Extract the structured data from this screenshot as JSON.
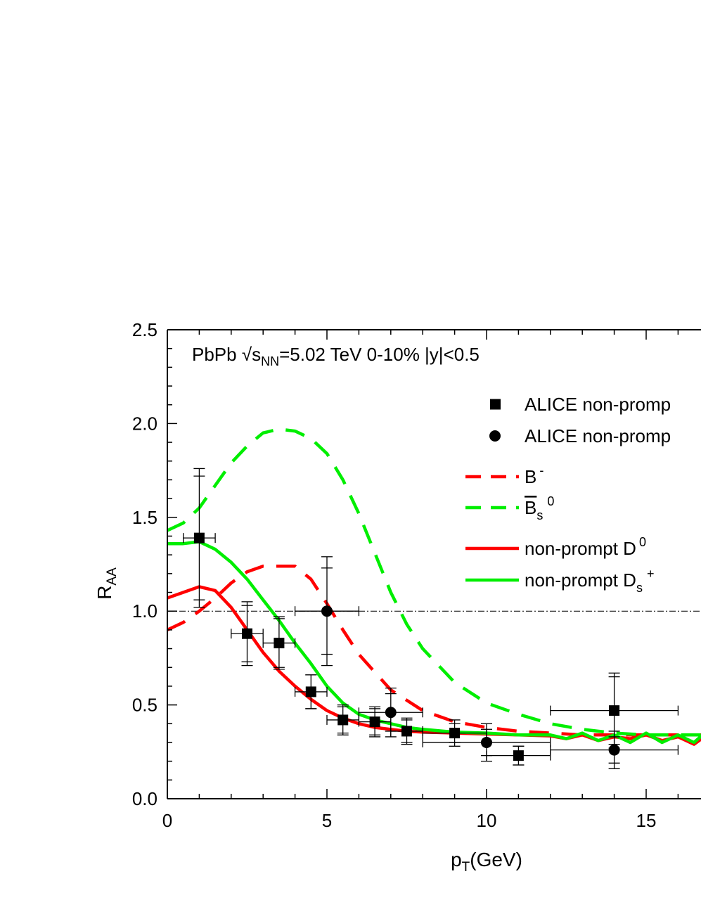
{
  "chart_data": {
    "type": "line",
    "annotation": {
      "prefix": "PbPb √s",
      "sub": "NN",
      "suffix": "=5.02 TeV 0-10% |y|<0.5"
    },
    "xlabel": {
      "main": "p",
      "sub": "T",
      "rest": "(GeV)"
    },
    "ylabel": {
      "main": "R",
      "sub": "AA"
    },
    "xlim": [
      0,
      16.9
    ],
    "ylim": [
      0,
      2.5
    ],
    "x_ticks": [
      0,
      5,
      10,
      15
    ],
    "y_ticks": [
      "0.0",
      "0.5",
      "1.0",
      "1.5",
      "2.0",
      "2.5"
    ],
    "reference_line": 1.0,
    "legend_position": "top-right",
    "series": [
      {
        "name": "ALICE non-promp",
        "marker": "square",
        "color": "#000000",
        "points": [
          {
            "x": 1.0,
            "y": 1.39,
            "xerr": 0.5,
            "yerr_stat": 0.33,
            "yerr_sys": 0.37
          },
          {
            "x": 2.5,
            "y": 0.88,
            "xerr": 0.5,
            "yerr_stat": 0.15,
            "yerr_sys": 0.17
          },
          {
            "x": 3.5,
            "y": 0.83,
            "xerr": 0.5,
            "yerr_stat": 0.13,
            "yerr_sys": 0.14
          },
          {
            "x": 4.5,
            "y": 0.57,
            "xerr": 0.5,
            "yerr_stat": 0.09,
            "yerr_sys": 0.09
          },
          {
            "x": 5.5,
            "y": 0.42,
            "xerr": 0.5,
            "yerr_stat": 0.07,
            "yerr_sys": 0.08
          },
          {
            "x": 6.5,
            "y": 0.41,
            "xerr": 0.5,
            "yerr_stat": 0.07,
            "yerr_sys": 0.08
          },
          {
            "x": 7.5,
            "y": 0.36,
            "xerr": 0.5,
            "yerr_stat": 0.06,
            "yerr_sys": 0.07
          },
          {
            "x": 9.0,
            "y": 0.35,
            "xerr": 1.0,
            "yerr_stat": 0.05,
            "yerr_sys": 0.07
          },
          {
            "x": 11.0,
            "y": 0.23,
            "xerr": 1.0,
            "yerr_stat": 0.05,
            "yerr_sys": 0.05
          },
          {
            "x": 14.0,
            "y": 0.47,
            "xerr": 2.0,
            "yerr_stat": 0.18,
            "yerr_sys": 0.2
          }
        ]
      },
      {
        "name": "ALICE non-promp",
        "marker": "circle",
        "color": "#000000",
        "points": [
          {
            "x": 5.0,
            "y": 1.0,
            "xerr": 1.0,
            "yerr_stat": 0.23,
            "yerr_sys": 0.29
          },
          {
            "x": 7.0,
            "y": 0.46,
            "xerr": 1.0,
            "yerr_stat": 0.1,
            "yerr_sys": 0.13
          },
          {
            "x": 10.0,
            "y": 0.3,
            "xerr": 2.0,
            "yerr_stat": 0.07,
            "yerr_sys": 0.1
          },
          {
            "x": 14.0,
            "y": 0.26,
            "xerr": 2.0,
            "yerr_stat": 0.07,
            "yerr_sys": 0.1
          }
        ]
      },
      {
        "name": "B",
        "name_sup": "-",
        "style": "dashed",
        "color": "#ff0000",
        "x": [
          0,
          0.5,
          1.0,
          1.5,
          2.0,
          2.5,
          3.0,
          3.5,
          4.0,
          4.5,
          5.0,
          5.5,
          6.0,
          7.0,
          8.0,
          9.0,
          10.0,
          11.0,
          12.0,
          13.0,
          14.0,
          15.0,
          16.0,
          16.9
        ],
        "y": [
          0.9,
          0.94,
          1.0,
          1.07,
          1.15,
          1.21,
          1.24,
          1.24,
          1.24,
          1.17,
          1.04,
          0.9,
          0.77,
          0.58,
          0.47,
          0.41,
          0.38,
          0.36,
          0.35,
          0.34,
          0.34,
          0.34,
          0.34,
          0.34
        ]
      },
      {
        "name": "B",
        "name_sub": "s",
        "name_sup": "0",
        "name_overline": true,
        "style": "dashed",
        "color": "#00ee00",
        "x": [
          0,
          0.5,
          1.0,
          1.5,
          2.0,
          2.5,
          3.0,
          3.5,
          4.0,
          4.5,
          5.0,
          5.5,
          6.0,
          6.5,
          7.0,
          7.5,
          8.0,
          9.0,
          10.0,
          11.0,
          12.0,
          13.0,
          14.0,
          15.0,
          16.0,
          16.9
        ],
        "y": [
          1.43,
          1.47,
          1.55,
          1.67,
          1.79,
          1.88,
          1.95,
          1.97,
          1.96,
          1.92,
          1.84,
          1.7,
          1.52,
          1.31,
          1.1,
          0.93,
          0.8,
          0.62,
          0.51,
          0.45,
          0.4,
          0.37,
          0.35,
          0.34,
          0.34,
          0.34
        ]
      },
      {
        "name": "non-prompt D",
        "name_sup": "0",
        "style": "solid",
        "color": "#ff0000",
        "x": [
          0,
          0.5,
          1.0,
          1.5,
          2.0,
          2.5,
          3.0,
          3.5,
          4.0,
          4.5,
          5.0,
          5.5,
          6.0,
          6.5,
          7.0,
          7.5,
          8.0,
          9.0,
          10.0,
          11.0,
          12.0,
          12.5,
          13.0,
          13.5,
          14.0,
          14.5,
          15.0,
          15.5,
          16.0,
          16.5,
          16.9
        ],
        "y": [
          1.07,
          1.1,
          1.13,
          1.11,
          1.02,
          0.9,
          0.78,
          0.68,
          0.6,
          0.53,
          0.47,
          0.43,
          0.4,
          0.38,
          0.37,
          0.36,
          0.355,
          0.35,
          0.345,
          0.34,
          0.335,
          0.32,
          0.34,
          0.31,
          0.33,
          0.32,
          0.34,
          0.31,
          0.33,
          0.29,
          0.34
        ]
      },
      {
        "name": "non-prompt D",
        "name_sub": "s",
        "name_sup": "+",
        "style": "solid",
        "color": "#00ee00",
        "x": [
          0,
          0.5,
          1.0,
          1.5,
          2.0,
          2.5,
          3.0,
          3.5,
          4.0,
          4.5,
          5.0,
          5.5,
          6.0,
          6.5,
          7.0,
          7.5,
          8.0,
          9.0,
          10.0,
          11.0,
          12.0,
          12.5,
          13.0,
          13.5,
          14.0,
          14.5,
          15.0,
          15.5,
          16.0,
          16.5,
          16.9
        ],
        "y": [
          1.36,
          1.36,
          1.37,
          1.33,
          1.26,
          1.17,
          1.06,
          0.95,
          0.83,
          0.72,
          0.6,
          0.51,
          0.45,
          0.42,
          0.4,
          0.38,
          0.37,
          0.355,
          0.35,
          0.34,
          0.34,
          0.32,
          0.35,
          0.31,
          0.34,
          0.3,
          0.35,
          0.3,
          0.34,
          0.3,
          0.36
        ]
      }
    ]
  }
}
